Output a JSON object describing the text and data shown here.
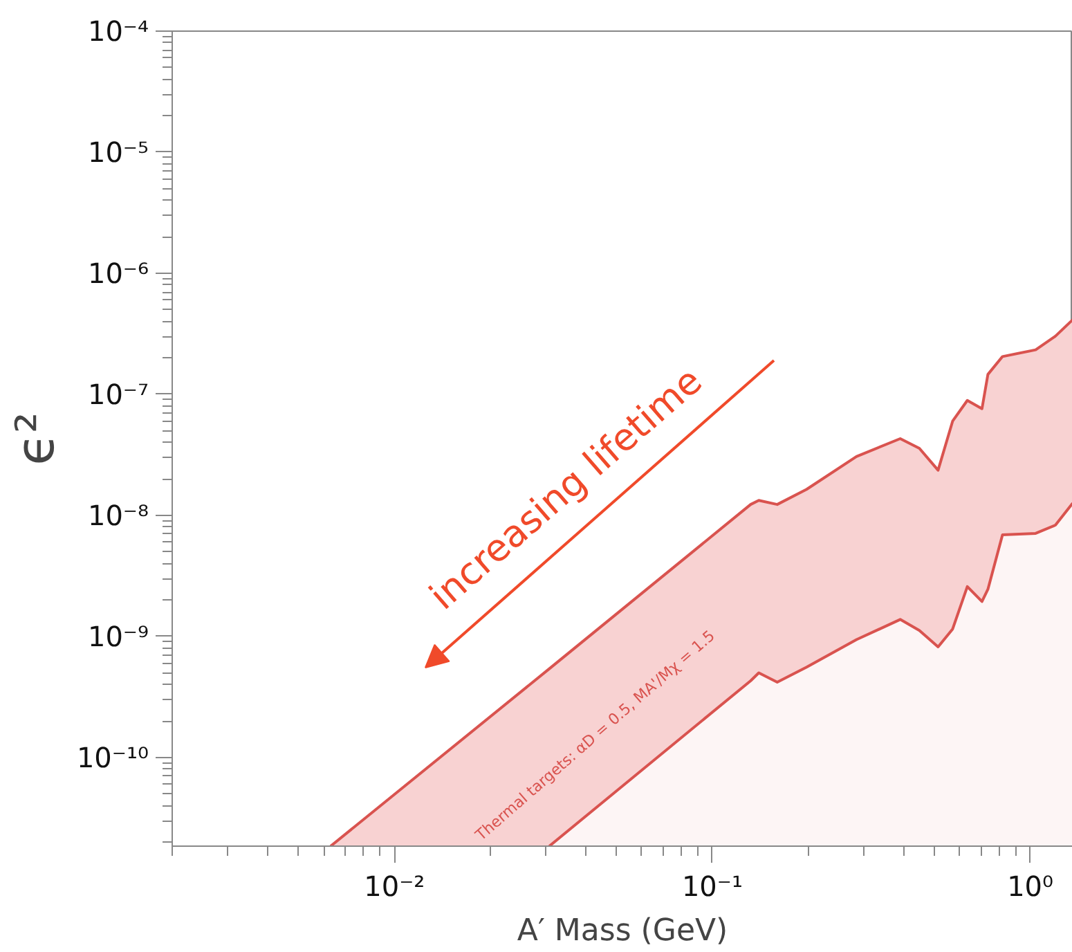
{
  "chart_data": {
    "type": "area",
    "xlabel": "A′ Mass (GeV)",
    "ylabel": "ϵ²",
    "log": "xy",
    "x": [
      0.0063,
      0.0307,
      0.132,
      0.14,
      0.16,
      0.198,
      0.284,
      0.39,
      0.448,
      0.513,
      0.57,
      0.634,
      0.705,
      0.736,
      0.818,
      1.04,
      1.2,
      1.36
    ],
    "series": [
      {
        "color": "#f8d2d2",
        "values": [
          1.85e-11,
          5.4e-10,
          1.23e-08,
          1.33e-08,
          1.23e-08,
          1.64e-08,
          3.06e-08,
          4.3e-08,
          3.58e-08,
          2.36e-08,
          6e-08,
          8.9e-08,
          7.6e-08,
          1.46e-07,
          2.05e-07,
          2.33e-07,
          3.02e-07,
          4.13e-07
        ]
      },
      {
        "color": "#fdf5f5",
        "x": [
          0.0307,
          0.132,
          0.14,
          0.16,
          0.198,
          0.284,
          0.39,
          0.448,
          0.513,
          0.57,
          0.634,
          0.705,
          0.736,
          0.818,
          1.04,
          1.2,
          1.36
        ],
        "values": [
          1.85e-11,
          4.3e-10,
          5e-10,
          4.19e-10,
          5.57e-10,
          9.4e-10,
          1.38e-09,
          1.12e-09,
          8.2e-10,
          1.15e-09,
          2.58e-09,
          1.94e-09,
          2.45e-09,
          6.9e-09,
          7.1e-09,
          8.3e-09,
          1.26e-08
        ]
      }
    ],
    "xlim": [
      0.002,
      1.36
    ],
    "ylim": [
      1.85e-11,
      0.0001
    ],
    "xticks": [
      {
        "value": 0.01,
        "label": "10⁻²"
      },
      {
        "value": 0.1,
        "label": "10⁻¹"
      },
      {
        "value": 1,
        "label": "10⁰"
      }
    ],
    "yticks": [
      {
        "value": 1e-10,
        "label": "10⁻¹⁰"
      },
      {
        "value": 1e-09,
        "label": "10⁻⁹"
      },
      {
        "value": 1e-08,
        "label": "10⁻⁸"
      },
      {
        "value": 1e-07,
        "label": "10⁻⁷"
      },
      {
        "value": 1e-06,
        "label": "10⁻⁶"
      },
      {
        "value": 1e-05,
        "label": "10⁻⁵"
      },
      {
        "value": 0.0001,
        "label": "10⁻⁴"
      }
    ],
    "annotations": [
      "increasing lifetime",
      "Thermal targets: αD = 0.5, MA'/Mχ = 1.5"
    ],
    "grid": false
  }
}
